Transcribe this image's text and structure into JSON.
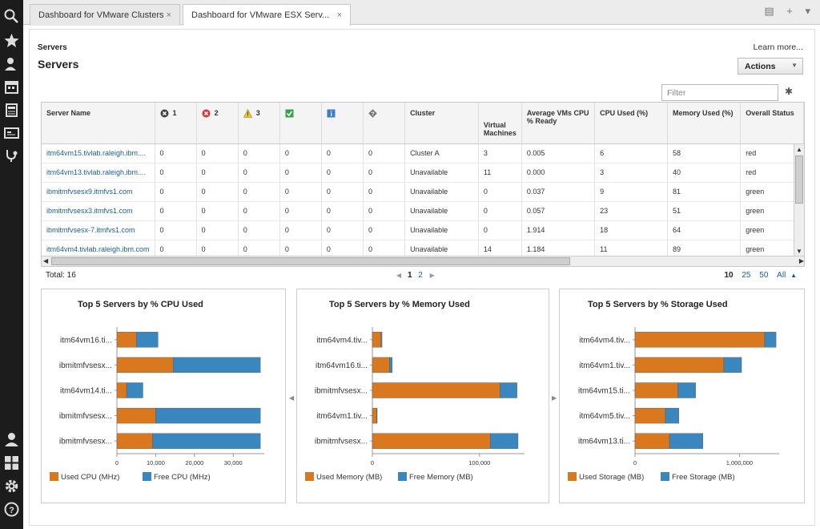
{
  "tabs": [
    {
      "label": "Dashboard for VMware Clusters",
      "close": "×"
    },
    {
      "label": "Dashboard for VMware ESX Serv...",
      "close": "×"
    }
  ],
  "tab_tools": {
    "doc": "▤",
    "add": "+",
    "menu": "▾"
  },
  "page": {
    "breadcrumb": "Servers",
    "title": "Servers",
    "learn_more": "Learn more...",
    "actions": "Actions",
    "filter_placeholder": "Filter"
  },
  "table": {
    "headers": {
      "name": "Server Name",
      "crit": "1",
      "fatal": "2",
      "warn": "3",
      "ok": "",
      "info": "",
      "unknown": "",
      "cluster": "Cluster",
      "vms": "Virtual Machines",
      "ready": "Average VMs CPU % Ready",
      "cpu": "CPU Used (%)",
      "mem": "Memory Used (%)",
      "status": "Overall Status"
    },
    "rows": [
      {
        "name": "itm64vm15.tivlab.raleigh.ibm....",
        "c": [
          "0",
          "0",
          "0",
          "0",
          "0",
          "0"
        ],
        "cluster": "Cluster A",
        "vms": "3",
        "ready": "0.005",
        "cpu": "6",
        "mem": "58",
        "status": "red"
      },
      {
        "name": "itm64vm13.tivlab.raleigh.ibm....",
        "c": [
          "0",
          "0",
          "0",
          "0",
          "0",
          "0"
        ],
        "cluster": "Unavailable",
        "vms": "11",
        "ready": "0.000",
        "cpu": "3",
        "mem": "40",
        "status": "red"
      },
      {
        "name": "ibmitmfvsesx9.itmfvs1.com",
        "c": [
          "0",
          "0",
          "0",
          "0",
          "0",
          "0"
        ],
        "cluster": "Unavailable",
        "vms": "0",
        "ready": "0.037",
        "cpu": "9",
        "mem": "81",
        "status": "green"
      },
      {
        "name": "ibmitmfvsesx3.itmfvs1.com",
        "c": [
          "0",
          "0",
          "0",
          "0",
          "0",
          "0"
        ],
        "cluster": "Unavailable",
        "vms": "0",
        "ready": "0.057",
        "cpu": "23",
        "mem": "51",
        "status": "green"
      },
      {
        "name": "ibmitmfvsesx-7.itmfvs1.com",
        "c": [
          "0",
          "0",
          "0",
          "0",
          "0",
          "0"
        ],
        "cluster": "Unavailable",
        "vms": "0",
        "ready": "1.914",
        "cpu": "18",
        "mem": "64",
        "status": "green"
      },
      {
        "name": "itm64vm4.tivlab.raleigh.ibm.com",
        "c": [
          "0",
          "0",
          "0",
          "0",
          "0",
          "0"
        ],
        "cluster": "Unavailable",
        "vms": "14",
        "ready": "1.184",
        "cpu": "11",
        "mem": "89",
        "status": "green"
      }
    ]
  },
  "footer": {
    "total": "Total: 16",
    "page_current": "1",
    "page_next": "2",
    "sizes": [
      "10",
      "25",
      "50",
      "All"
    ],
    "size_selected": "10"
  },
  "colors": {
    "used": "#d9781e",
    "free": "#3a87c0",
    "accent": "#1a5e9a"
  },
  "chart_data": [
    {
      "type": "bar",
      "orientation": "horizontal",
      "stacked": true,
      "title": "Top 5 Servers by % CPU Used",
      "categories": [
        "itm64vm16.ti...",
        "ibmitmfvsesx...",
        "itm64vm14.ti...",
        "ibmitmfvsesx...",
        "ibmitmfvsesx..."
      ],
      "series": [
        {
          "name": "Used CPU (MHz)",
          "values": [
            5000,
            14500,
            2500,
            10000,
            9200
          ]
        },
        {
          "name": "Free CPU (MHz)",
          "values": [
            5600,
            22500,
            4200,
            27000,
            27800
          ]
        }
      ],
      "xticks": [
        0,
        10000,
        20000,
        30000
      ],
      "xtick_labels": [
        "0",
        "10,000",
        "20,000",
        "30,000"
      ],
      "xlim": [
        0,
        38000
      ]
    },
    {
      "type": "bar",
      "orientation": "horizontal",
      "stacked": true,
      "title": "Top 5 Servers by % Memory Used",
      "categories": [
        "itm64vm4.tiv...",
        "itm64vm16.ti...",
        "ibmitmfvsesx...",
        "itm64vm1.tiv...",
        "ibmitmfvsesx..."
      ],
      "series": [
        {
          "name": "Used Memory (MB)",
          "values": [
            8000,
            16000,
            119000,
            4000,
            110000
          ]
        },
        {
          "name": "Free Memory (MB)",
          "values": [
            1000,
            2500,
            16000,
            500,
            26000
          ]
        }
      ],
      "xticks": [
        0,
        100000
      ],
      "xtick_labels": [
        "0",
        "100,000"
      ],
      "xlim": [
        0,
        142000
      ]
    },
    {
      "type": "bar",
      "orientation": "horizontal",
      "stacked": true,
      "title": "Top 5 Servers by % Storage Used",
      "categories": [
        "itm64vm4.tiv...",
        "itm64vm1.tiv...",
        "itm64vm15.ti...",
        "itm64vm5.tiv...",
        "itm64vm13.ti..."
      ],
      "series": [
        {
          "name": "Used Storage (MB)",
          "values": [
            1240000,
            850000,
            410000,
            290000,
            330000
          ]
        },
        {
          "name": "Free Storage (MB)",
          "values": [
            110000,
            170000,
            170000,
            130000,
            320000
          ]
        }
      ],
      "xticks": [
        0,
        1000000
      ],
      "xtick_labels": [
        "0",
        "1,000,000"
      ],
      "xlim": [
        0,
        1380000
      ]
    }
  ]
}
